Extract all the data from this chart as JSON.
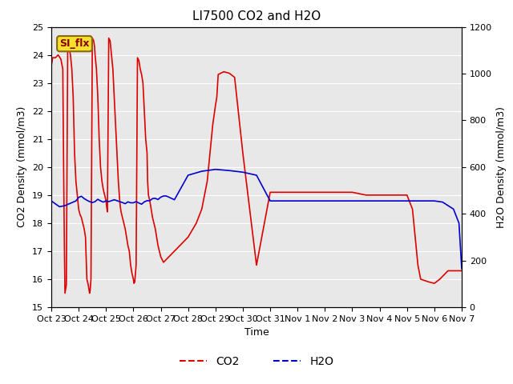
{
  "title": "LI7500 CO2 and H2O",
  "xlabel": "Time",
  "ylabel_left": "CO2 Density (mmol/m3)",
  "ylabel_right": "H2O Density (mmol/m3)",
  "ylim_left": [
    15.0,
    25.0
  ],
  "ylim_right": [
    0,
    1200
  ],
  "bg_color": "#e8e8e8",
  "annotation_text": "SI_flx",
  "co2_color": "#dd0000",
  "h2o_color": "#0000cc",
  "legend_co2": "CO2",
  "legend_h2o": "H2O",
  "xtick_labels": [
    "Oct 23",
    "Oct 24",
    "Oct 25",
    "Oct 26",
    "Oct 27",
    "Oct 28",
    "Oct 29",
    "Oct 30",
    "Oct 31",
    "Nov 1",
    "Nov 2",
    "Nov 3",
    "Nov 4",
    "Nov 5",
    "Nov 6",
    "Nov 7"
  ],
  "xtick_positions": [
    0,
    1,
    2,
    3,
    4,
    5,
    6,
    7,
    8,
    9,
    10,
    11,
    12,
    13,
    14,
    15
  ],
  "co2_x": [
    0.0,
    0.05,
    0.15,
    0.25,
    0.35,
    0.42,
    0.45,
    0.48,
    0.5,
    0.55,
    0.6,
    0.65,
    0.68,
    0.7,
    0.72,
    0.75,
    0.8,
    0.85,
    0.9,
    0.95,
    1.0,
    1.05,
    1.1,
    1.15,
    1.2,
    1.25,
    1.3,
    1.35,
    1.38,
    1.4,
    1.42,
    1.45,
    1.5,
    1.55,
    1.58,
    1.6,
    1.62,
    1.65,
    1.7,
    1.75,
    1.8,
    1.85,
    1.9,
    1.95,
    2.0,
    2.02,
    2.05,
    2.1,
    2.15,
    2.2,
    2.25,
    2.3,
    2.35,
    2.4,
    2.45,
    2.5,
    2.52,
    2.55,
    2.6,
    2.65,
    2.7,
    2.75,
    2.8,
    2.85,
    2.9,
    2.95,
    3.0,
    3.02,
    3.05,
    3.1,
    3.15,
    3.2,
    3.25,
    3.3,
    3.35,
    3.4,
    3.45,
    3.5,
    3.52,
    3.55,
    3.6,
    3.65,
    3.7,
    3.75,
    3.8,
    3.85,
    3.9,
    3.95,
    4.0,
    4.05,
    4.1,
    4.2,
    4.3,
    4.5,
    4.7,
    5.0,
    5.3,
    5.5,
    5.7,
    5.9,
    6.0,
    6.05,
    6.1,
    6.3,
    6.5,
    6.7,
    7.0,
    7.5,
    7.5,
    8.0,
    8.5,
    9.0,
    9.5,
    10.0,
    10.5,
    11.0,
    11.5,
    12.0,
    12.5,
    13.0,
    13.2,
    13.4,
    13.5,
    13.8,
    14.0,
    14.2,
    14.5,
    14.8,
    15.0
  ],
  "co2_y": [
    23.6,
    23.9,
    23.9,
    24.0,
    23.85,
    23.5,
    20.0,
    17.0,
    15.5,
    15.8,
    24.3,
    24.4,
    24.1,
    24.0,
    23.8,
    23.5,
    22.5,
    20.5,
    19.5,
    19.0,
    18.5,
    18.3,
    18.2,
    18.0,
    17.8,
    17.5,
    16.0,
    15.8,
    15.6,
    15.5,
    15.6,
    16.0,
    24.6,
    24.5,
    24.3,
    24.0,
    23.8,
    23.5,
    22.5,
    21.0,
    20.0,
    19.5,
    19.2,
    19.0,
    18.8,
    18.6,
    18.4,
    24.6,
    24.5,
    24.0,
    23.5,
    22.5,
    21.5,
    20.5,
    19.5,
    18.8,
    18.6,
    18.4,
    18.2,
    18.0,
    17.8,
    17.5,
    17.2,
    17.0,
    16.5,
    16.2,
    16.0,
    15.85,
    15.9,
    16.5,
    23.9,
    23.8,
    23.5,
    23.3,
    23.0,
    22.0,
    21.0,
    20.5,
    19.5,
    19.0,
    18.8,
    18.5,
    18.2,
    18.0,
    17.8,
    17.5,
    17.2,
    17.0,
    16.8,
    16.7,
    16.6,
    16.7,
    16.8,
    17.0,
    17.2,
    17.5,
    18.0,
    18.5,
    19.5,
    21.5,
    22.2,
    22.5,
    23.3,
    23.4,
    23.35,
    23.2,
    20.5,
    16.5,
    16.5,
    19.1,
    19.1,
    19.1,
    19.1,
    19.1,
    19.1,
    19.1,
    19.0,
    19.0,
    19.0,
    19.0,
    18.5,
    16.5,
    16.0,
    15.9,
    15.85,
    16.0,
    16.3,
    16.3,
    16.3
  ],
  "h2o_x": [
    0.0,
    0.3,
    0.5,
    0.7,
    0.9,
    1.0,
    1.1,
    1.2,
    1.3,
    1.4,
    1.5,
    1.6,
    1.7,
    1.8,
    1.9,
    2.0,
    2.1,
    2.2,
    2.3,
    2.4,
    2.5,
    2.6,
    2.7,
    2.8,
    2.9,
    3.0,
    3.1,
    3.2,
    3.3,
    3.4,
    3.5,
    3.6,
    3.7,
    3.8,
    3.9,
    4.0,
    4.1,
    4.2,
    4.3,
    4.5,
    5.0,
    5.5,
    6.0,
    6.5,
    7.0,
    7.5,
    8.0,
    8.5,
    9.0,
    9.5,
    10.0,
    10.5,
    11.0,
    11.5,
    12.0,
    12.5,
    13.0,
    13.5,
    14.0,
    14.3,
    14.5,
    14.7,
    14.9,
    15.0
  ],
  "h2o_y": [
    455,
    430,
    435,
    445,
    455,
    470,
    475,
    465,
    458,
    452,
    448,
    452,
    462,
    455,
    450,
    455,
    452,
    456,
    460,
    456,
    452,
    448,
    443,
    451,
    447,
    447,
    452,
    446,
    441,
    451,
    456,
    456,
    465,
    466,
    461,
    471,
    476,
    476,
    471,
    460,
    565,
    582,
    590,
    585,
    578,
    565,
    455,
    455,
    455,
    455,
    455,
    455,
    455,
    455,
    455,
    455,
    455,
    455,
    455,
    450,
    435,
    420,
    360,
    165
  ],
  "grid_color": "#ffffff",
  "title_fontsize": 11,
  "axis_fontsize": 9,
  "tick_fontsize": 8
}
